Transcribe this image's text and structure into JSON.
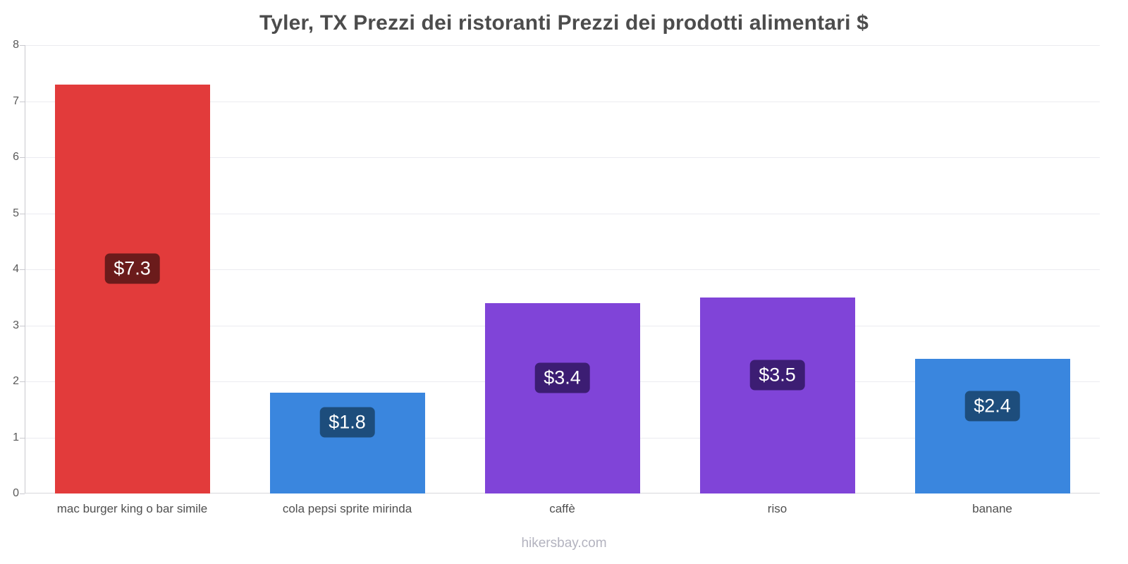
{
  "title": "Tyler, TX Prezzi dei ristoranti Prezzi dei prodotti alimentari $",
  "footer": "hikersbay.com",
  "chart_data": {
    "type": "bar",
    "title": "Tyler, TX Prezzi dei ristoranti Prezzi dei prodotti alimentari $",
    "categories": [
      "mac burger king o bar simile",
      "cola pepsi sprite mirinda",
      "caffè",
      "riso",
      "banane"
    ],
    "values": [
      7.3,
      1.8,
      3.4,
      3.5,
      2.4
    ],
    "value_labels": [
      "$7.3",
      "$1.8",
      "$3.4",
      "$3.5",
      "$2.4"
    ],
    "bar_colors": [
      "#e23b3b",
      "#3a86de",
      "#8044d8",
      "#8044d8",
      "#3a86de"
    ],
    "label_bg_colors": [
      "#6b1b1b",
      "#1d4d7c",
      "#3c1d73",
      "#3c1d73",
      "#1d4d7c"
    ],
    "xlabel": "",
    "ylabel": "",
    "ylim": [
      0,
      8
    ],
    "yticks": [
      0,
      1,
      2,
      3,
      4,
      5,
      6,
      7,
      8
    ],
    "grid": true,
    "legend": false
  }
}
